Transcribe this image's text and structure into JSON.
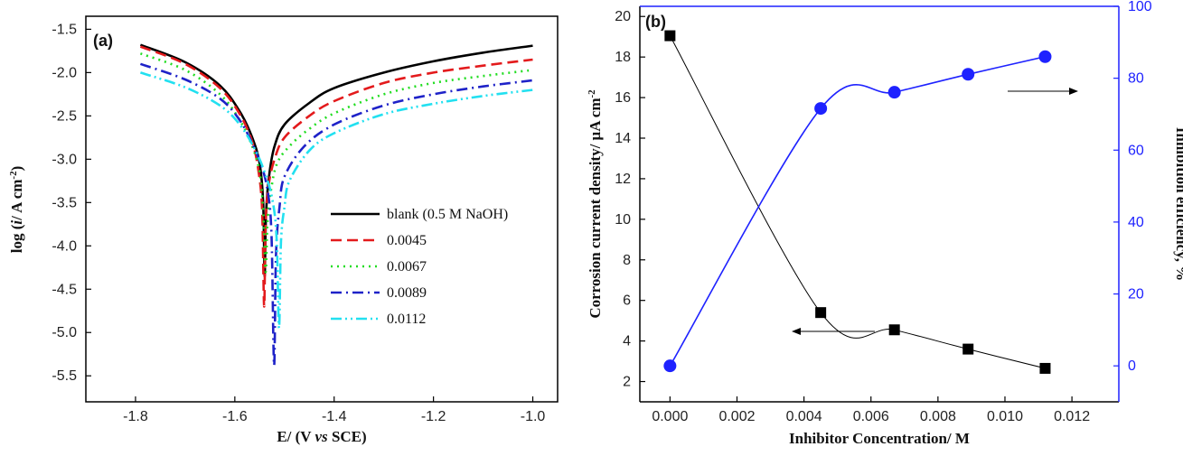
{
  "chart_data": [
    {
      "type": "line",
      "panel_label": "(a)",
      "xlabel": "E/ (V vs SCE)",
      "ylabel": "log (i/ A cm-2)",
      "xlim": [
        -1.9,
        -0.95
      ],
      "ylim": [
        -5.8,
        -1.35
      ],
      "x_ticks": [
        "-1.8",
        "-1.6",
        "-1.4",
        "-1.2",
        "-1.0"
      ],
      "y_ticks": [
        "-1.5",
        "-2.0",
        "-2.5",
        "-3.0",
        "-3.5",
        "-4.0",
        "-4.5",
        "-5.0",
        "-5.5"
      ],
      "legend_position": "center-right",
      "series": [
        {
          "name": "blank (0.5 M NaOH)",
          "color": "#000000",
          "dash": "solid",
          "x": [
            -1.79,
            -1.7,
            -1.63,
            -1.59,
            -1.565,
            -1.55,
            -1.543,
            -1.54,
            -1.537,
            -1.53,
            -1.52,
            -1.5,
            -1.45,
            -1.4,
            -1.3,
            -1.2,
            -1.1,
            -1.0
          ],
          "y": [
            -1.68,
            -1.88,
            -2.15,
            -2.45,
            -2.75,
            -3.05,
            -3.5,
            -4.35,
            -3.6,
            -3.15,
            -2.85,
            -2.6,
            -2.35,
            -2.18,
            -2.0,
            -1.87,
            -1.77,
            -1.69
          ]
        },
        {
          "name": "0.0045",
          "color": "#e31a1c",
          "dash": "dash",
          "x": [
            -1.79,
            -1.7,
            -1.63,
            -1.59,
            -1.565,
            -1.552,
            -1.545,
            -1.541,
            -1.538,
            -1.532,
            -1.52,
            -1.5,
            -1.45,
            -1.4,
            -1.3,
            -1.2,
            -1.1,
            -1.0
          ],
          "y": [
            -1.7,
            -1.9,
            -2.18,
            -2.48,
            -2.8,
            -3.15,
            -3.6,
            -4.7,
            -3.75,
            -3.3,
            -3.0,
            -2.75,
            -2.5,
            -2.33,
            -2.12,
            -2.0,
            -1.92,
            -1.85
          ]
        },
        {
          "name": "0.0067",
          "color": "#22dd22",
          "dash": "dot",
          "x": [
            -1.79,
            -1.7,
            -1.63,
            -1.59,
            -1.565,
            -1.55,
            -1.543,
            -1.538,
            -1.534,
            -1.527,
            -1.515,
            -1.49,
            -1.45,
            -1.4,
            -1.3,
            -1.2,
            -1.1,
            -1.0
          ],
          "y": [
            -1.78,
            -1.97,
            -2.25,
            -2.55,
            -2.85,
            -3.15,
            -3.6,
            -4.3,
            -3.7,
            -3.35,
            -3.05,
            -2.85,
            -2.65,
            -2.47,
            -2.25,
            -2.12,
            -2.04,
            -1.97
          ]
        },
        {
          "name": "0.0089",
          "color": "#1e22c8",
          "dash": "dashdot",
          "x": [
            -1.79,
            -1.7,
            -1.63,
            -1.59,
            -1.565,
            -1.545,
            -1.533,
            -1.526,
            -1.521,
            -1.517,
            -1.51,
            -1.5,
            -1.46,
            -1.4,
            -1.3,
            -1.2,
            -1.1,
            -1.0
          ],
          "y": [
            -1.9,
            -2.08,
            -2.3,
            -2.55,
            -2.82,
            -3.1,
            -3.4,
            -3.9,
            -5.38,
            -4.1,
            -3.55,
            -3.2,
            -2.85,
            -2.6,
            -2.38,
            -2.25,
            -2.16,
            -2.09
          ]
        },
        {
          "name": "0.0112",
          "color": "#22e0f0",
          "dash": "dashdotdot",
          "x": [
            -1.79,
            -1.7,
            -1.63,
            -1.59,
            -1.56,
            -1.54,
            -1.525,
            -1.516,
            -1.511,
            -1.507,
            -1.5,
            -1.49,
            -1.45,
            -1.4,
            -1.3,
            -1.2,
            -1.1,
            -1.0
          ],
          "y": [
            -2.0,
            -2.17,
            -2.38,
            -2.6,
            -2.88,
            -3.15,
            -3.45,
            -3.9,
            -4.95,
            -3.95,
            -3.55,
            -3.25,
            -2.9,
            -2.7,
            -2.48,
            -2.36,
            -2.27,
            -2.2
          ]
        }
      ]
    },
    {
      "type": "scatter",
      "panel_label": "(b)",
      "xlabel": "Inhibitor Concentration/ M",
      "ylabel_left": "Corrosion current density/ μA cm-2",
      "ylabel_right": "Inhibition efficiency, %",
      "xlim": [
        -0.0009,
        0.0134
      ],
      "ylim_left": [
        1.0,
        20.5
      ],
      "ylim_right": [
        -10,
        100
      ],
      "x_ticks": [
        "0.000",
        "0.002",
        "0.004",
        "0.006",
        "0.008",
        "0.010",
        "0.012"
      ],
      "y_ticks_left": [
        "2",
        "4",
        "6",
        "8",
        "10",
        "12",
        "14",
        "16",
        "18",
        "20"
      ],
      "y_ticks_right": [
        "0",
        "20",
        "40",
        "60",
        "80",
        "100"
      ],
      "series": [
        {
          "name": "",
          "axis": "left",
          "marker": "square",
          "color": "#000000",
          "x": [
            0.0,
            0.0045,
            0.0067,
            0.0089,
            0.0112
          ],
          "y": [
            19.05,
            5.4,
            4.55,
            3.6,
            2.65
          ]
        },
        {
          "name": "",
          "axis": "right",
          "marker": "circle",
          "color": "#1e22ff",
          "x": [
            0.0,
            0.0045,
            0.0067,
            0.0089,
            0.0112
          ],
          "y": [
            0.0,
            71.6,
            76.1,
            81.1,
            86.0
          ]
        }
      ]
    }
  ]
}
